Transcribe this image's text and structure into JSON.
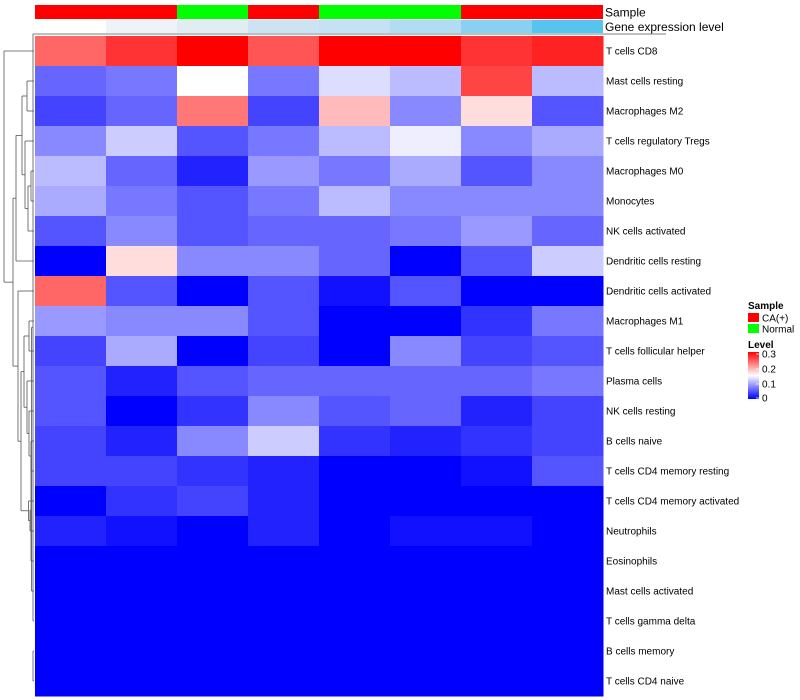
{
  "chart_data": {
    "type": "heatmap",
    "annotation_labels": [
      "Sample",
      "Gene expression level"
    ],
    "samples": [
      "CA(+)",
      "CA(+)",
      "Normal",
      "CA(+)",
      "Normal",
      "Normal",
      "CA(+)",
      "CA(+)"
    ],
    "gene_expression_level": [
      0.0,
      0.1,
      0.2,
      0.3,
      0.4,
      0.5,
      0.8,
      1.0
    ],
    "gene_expression_colors": [
      "#ffffff",
      "#edf3f7",
      "#e2ecf3",
      "#cce4f2",
      "#c4e2f3",
      "#b3dbf2",
      "#8ad0f0",
      "#57c3ef"
    ],
    "rows": [
      "T cells CD8",
      "Mast cells resting",
      "Macrophages M2",
      "T cells regulatory  Tregs",
      "Macrophages M0",
      "Monocytes",
      "NK cells activated",
      "Dendritic cells resting",
      "Dendritic cells activated",
      "Macrophages M1",
      "T cells follicular helper",
      "Plasma cells",
      "NK cells resting",
      "B cells naive",
      "T cells CD4 memory resting",
      "T cells CD4 memory activated",
      "Neutrophils",
      "Eosinophils",
      "Mast cells activated",
      "T cells gamma delta",
      "B cells memory",
      "T cells CD4 naive"
    ],
    "values": [
      [
        0.24,
        0.27,
        0.3,
        0.25,
        0.3,
        0.3,
        0.27,
        0.28
      ],
      [
        0.06,
        0.07,
        0.15,
        0.07,
        0.13,
        0.11,
        0.26,
        0.11
      ],
      [
        0.04,
        0.06,
        0.23,
        0.04,
        0.19,
        0.08,
        0.17,
        0.05
      ],
      [
        0.08,
        0.12,
        0.05,
        0.07,
        0.11,
        0.14,
        0.08,
        0.1
      ],
      [
        0.11,
        0.06,
        0.02,
        0.09,
        0.07,
        0.1,
        0.05,
        0.08
      ],
      [
        0.1,
        0.07,
        0.05,
        0.07,
        0.11,
        0.08,
        0.08,
        0.08
      ],
      [
        0.05,
        0.08,
        0.05,
        0.06,
        0.06,
        0.07,
        0.09,
        0.06
      ],
      [
        0.0,
        0.17,
        0.08,
        0.08,
        0.06,
        0.0,
        0.05,
        0.12
      ],
      [
        0.24,
        0.05,
        0.0,
        0.05,
        0.01,
        0.05,
        0.0,
        0.0
      ],
      [
        0.09,
        0.08,
        0.08,
        0.05,
        0.0,
        0.0,
        0.03,
        0.07
      ],
      [
        0.04,
        0.1,
        0.0,
        0.04,
        0.0,
        0.08,
        0.04,
        0.05
      ],
      [
        0.05,
        0.02,
        0.05,
        0.06,
        0.06,
        0.06,
        0.06,
        0.07
      ],
      [
        0.05,
        0.0,
        0.03,
        0.08,
        0.05,
        0.06,
        0.02,
        0.04
      ],
      [
        0.04,
        0.02,
        0.08,
        0.12,
        0.03,
        0.02,
        0.03,
        0.04
      ],
      [
        0.04,
        0.04,
        0.03,
        0.02,
        0.0,
        0.0,
        0.01,
        0.05
      ],
      [
        0.0,
        0.03,
        0.04,
        0.02,
        0.0,
        0.0,
        0.0,
        0.0
      ],
      [
        0.02,
        0.01,
        0.0,
        0.02,
        0.0,
        0.01,
        0.01,
        0.0
      ],
      [
        0.0,
        0.0,
        0.0,
        0.0,
        0.0,
        0.0,
        0.0,
        0.0
      ],
      [
        0.0,
        0.0,
        0.0,
        0.0,
        0.0,
        0.0,
        0.0,
        0.0
      ],
      [
        0.0,
        0.0,
        0.0,
        0.0,
        0.0,
        0.0,
        0.0,
        0.0
      ],
      [
        0.0,
        0.0,
        0.0,
        0.0,
        0.0,
        0.0,
        0.0,
        0.0
      ],
      [
        0.0,
        0.0,
        0.0,
        0.0,
        0.0,
        0.0,
        0.0,
        0.0
      ]
    ],
    "color_scale": {
      "low": "#0000ff",
      "mid": "#ffffff",
      "high": "#ff0000",
      "min": 0,
      "mid_value": 0.15,
      "max": 0.3
    },
    "legend": {
      "sample_title": "Sample",
      "sample_entries": [
        {
          "label": "CA(+)",
          "color": "#ff0000"
        },
        {
          "label": "Normal",
          "color": "#00ff00"
        }
      ],
      "level_title": "Level",
      "level_ticks": [
        "0.3",
        "0.2",
        "0.1",
        "0"
      ],
      "placement": "right"
    },
    "dendrogram": "rows-left"
  }
}
